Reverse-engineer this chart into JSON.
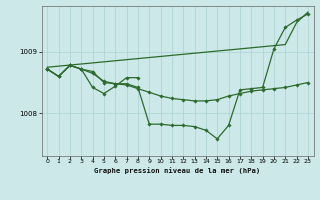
{
  "title": "Graphe pression niveau de la mer (hPa)",
  "bg_color": "#cce8e8",
  "grid_color": "#aad0d0",
  "line_color": "#2d6b2d",
  "xlim": [
    -0.5,
    23.5
  ],
  "ylim": [
    1007.3,
    1009.75
  ],
  "yticks": [
    1008,
    1009
  ],
  "xticks": [
    0,
    1,
    2,
    3,
    4,
    5,
    6,
    7,
    8,
    9,
    10,
    11,
    12,
    13,
    14,
    15,
    16,
    17,
    18,
    19,
    20,
    21,
    22,
    23
  ],
  "curve_top": [
    1008.75,
    null,
    null,
    null,
    null,
    null,
    null,
    null,
    null,
    null,
    null,
    null,
    null,
    null,
    null,
    null,
    null,
    null,
    null,
    null,
    null,
    1009.12,
    1009.48,
    1009.65
  ],
  "curve_main": [
    1008.72,
    1008.6,
    1008.78,
    1008.72,
    1008.68,
    1008.5,
    1008.48,
    1008.48,
    1008.42,
    1007.82,
    1007.82,
    1007.8,
    1007.8,
    1007.78,
    1007.72,
    1007.58,
    1007.8,
    1008.38,
    1008.4,
    1008.42,
    1009.05,
    1009.4,
    1009.52,
    1009.62
  ],
  "curve_mid": [
    1008.72,
    1008.6,
    1008.78,
    1008.72,
    1008.65,
    1008.52,
    1008.48,
    1008.46,
    1008.4,
    1008.34,
    1008.28,
    1008.24,
    1008.22,
    1008.2,
    1008.2,
    1008.22,
    1008.28,
    1008.32,
    1008.36,
    1008.38,
    1008.4,
    1008.42,
    1008.46,
    1008.5
  ],
  "curve_short": [
    1008.72,
    1008.6,
    1008.78,
    1008.72,
    1008.42,
    1008.32,
    1008.44,
    1008.58,
    1008.58,
    null,
    null,
    null,
    null,
    null,
    null,
    null,
    null,
    null,
    null,
    null,
    null,
    null,
    null,
    null
  ]
}
